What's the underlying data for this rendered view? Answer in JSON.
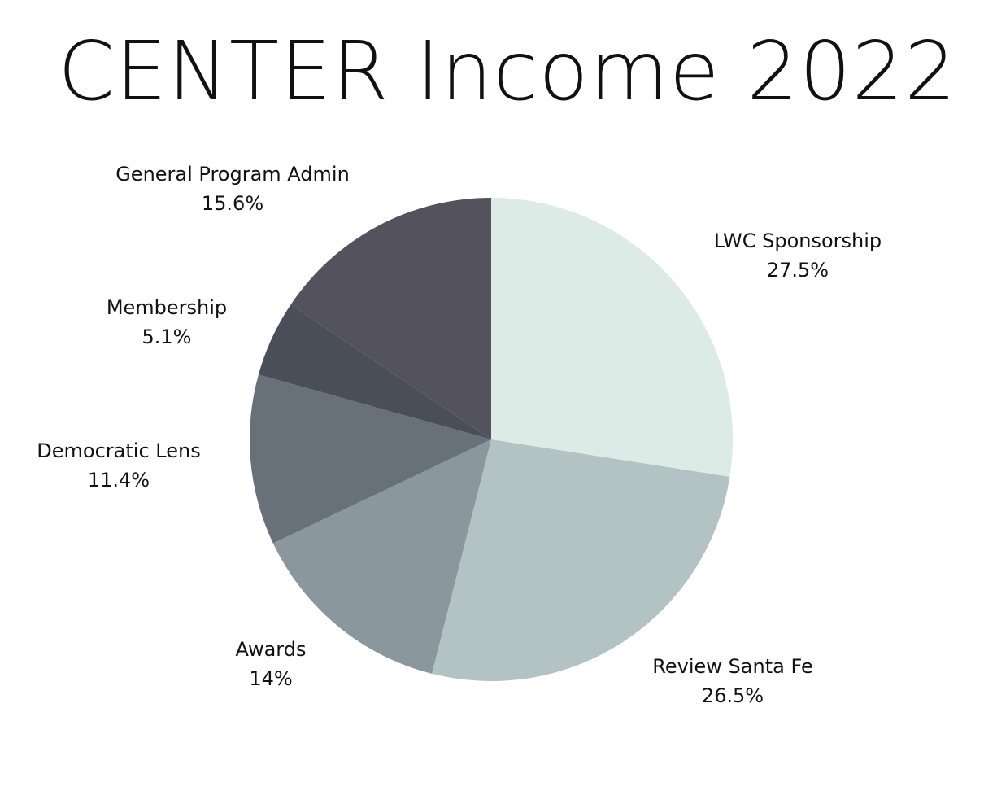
{
  "chart_data": {
    "type": "pie",
    "title": "CENTER  Income 2022",
    "slices": [
      {
        "label": "LWC Sponsorship",
        "value": 27.5,
        "value_label": "27.5%",
        "color": "#dcebe6"
      },
      {
        "label": "Review Santa Fe",
        "value": 26.5,
        "value_label": "26.5%",
        "color": "#b3c2c3"
      },
      {
        "label": "Awards",
        "value": 14,
        "value_label": "14%",
        "color": "#8a989e"
      },
      {
        "label": "Democratic Lens",
        "value": 11.4,
        "value_label": "11.4%",
        "color": "#687079"
      },
      {
        "label": "Membership",
        "value": 5.1,
        "value_label": "5.1%",
        "color": "#4a4e58"
      },
      {
        "label": "General Program Admin",
        "value": 15.6,
        "value_label": "15.6%",
        "color": "#53525d"
      }
    ],
    "start_angle": "12 o'clock",
    "direction": "clockwise",
    "legend": "none",
    "labels": "outside slices"
  }
}
